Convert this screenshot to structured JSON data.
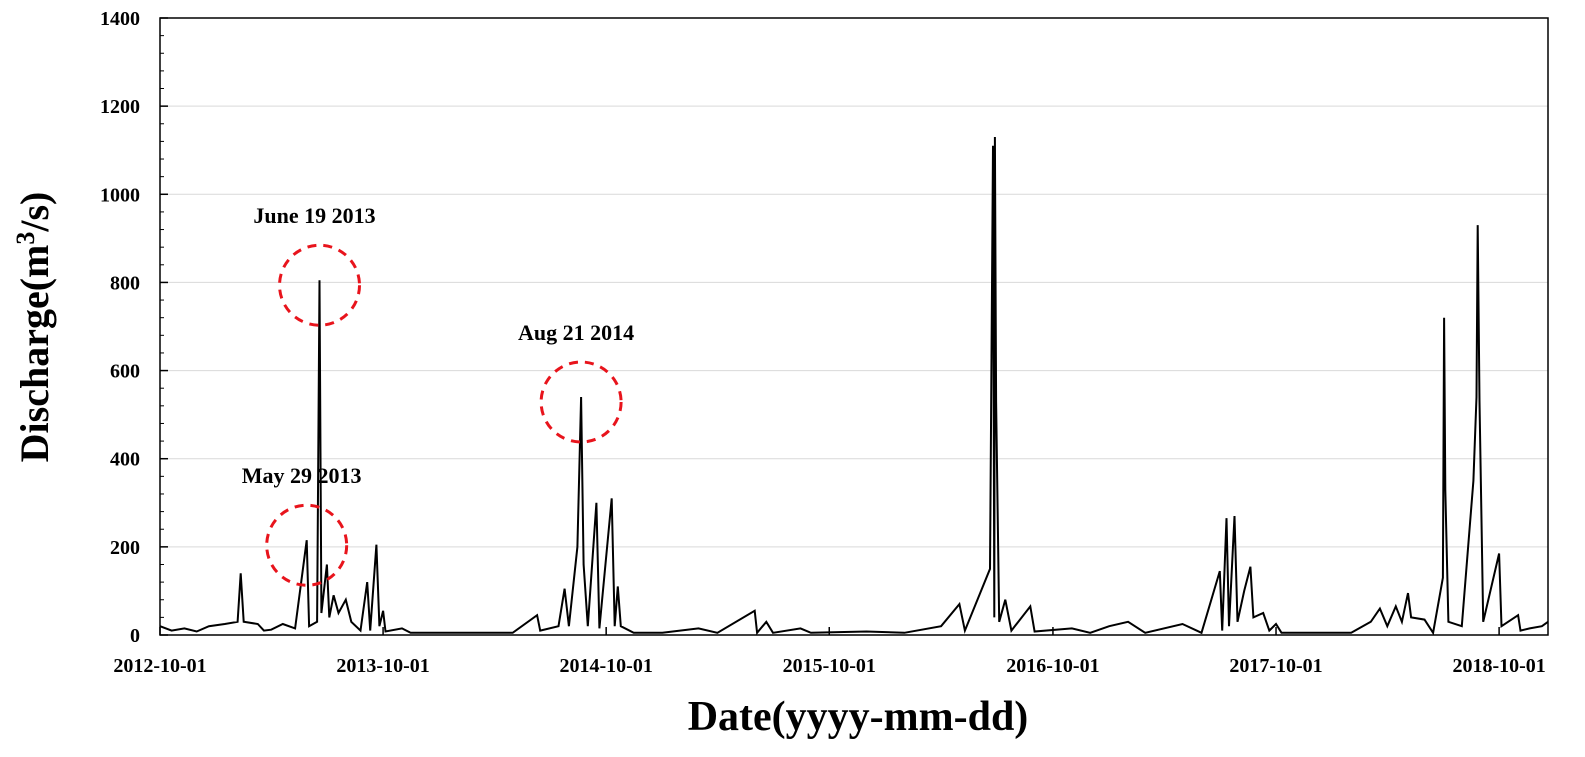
{
  "chart_data": {
    "type": "line",
    "xlabel": "Date(yyyy-mm-dd)",
    "ylabel_main": "Discharge(m",
    "ylabel_sup": "3",
    "ylabel_end": "/s)",
    "xlim": [
      "2012-10-01",
      "2018-12-20"
    ],
    "ylim": [
      0,
      1400
    ],
    "x_ticks": [
      "2012-10-01",
      "2013-10-01",
      "2014-10-01",
      "2015-10-01",
      "2016-10-01",
      "2017-10-01",
      "2018-10-01"
    ],
    "y_ticks": [
      0,
      200,
      400,
      600,
      800,
      1000,
      1200,
      1400
    ],
    "grid": "horizontal",
    "line_color": "#000000",
    "circle_color": "#e8141c",
    "annotations": [
      {
        "label": "June 19 2013",
        "date": "2013-06-19",
        "value": 805
      },
      {
        "label": "May 29 2013",
        "date": "2013-05-29",
        "value": 215
      },
      {
        "label": "Aug 21 2014",
        "date": "2014-08-21",
        "value": 540
      }
    ],
    "series": [
      {
        "points": [
          [
            "2012-10-01",
            20
          ],
          [
            "2012-10-20",
            10
          ],
          [
            "2012-11-10",
            15
          ],
          [
            "2012-11-30",
            8
          ],
          [
            "2012-12-20",
            20
          ],
          [
            "2013-01-15",
            25
          ],
          [
            "2013-02-05",
            30
          ],
          [
            "2013-02-10",
            140
          ],
          [
            "2013-02-15",
            30
          ],
          [
            "2013-03-10",
            25
          ],
          [
            "2013-03-20",
            10
          ],
          [
            "2013-04-01",
            12
          ],
          [
            "2013-04-20",
            25
          ],
          [
            "2013-05-10",
            15
          ],
          [
            "2013-05-29",
            215
          ],
          [
            "2013-06-02",
            20
          ],
          [
            "2013-06-15",
            30
          ],
          [
            "2013-06-19",
            805
          ],
          [
            "2013-06-22",
            50
          ],
          [
            "2013-07-01",
            160
          ],
          [
            "2013-07-05",
            40
          ],
          [
            "2013-07-12",
            90
          ],
          [
            "2013-07-20",
            50
          ],
          [
            "2013-08-01",
            80
          ],
          [
            "2013-08-10",
            30
          ],
          [
            "2013-08-25",
            10
          ],
          [
            "2013-09-05",
            120
          ],
          [
            "2013-09-10",
            10
          ],
          [
            "2013-09-20",
            205
          ],
          [
            "2013-09-25",
            20
          ],
          [
            "2013-10-01",
            55
          ],
          [
            "2013-10-05",
            8
          ],
          [
            "2013-11-01",
            15
          ],
          [
            "2013-11-15",
            5
          ],
          [
            "2014-01-01",
            5
          ],
          [
            "2014-03-01",
            5
          ],
          [
            "2014-05-01",
            5
          ],
          [
            "2014-06-10",
            45
          ],
          [
            "2014-06-15",
            10
          ],
          [
            "2014-07-15",
            20
          ],
          [
            "2014-07-25",
            105
          ],
          [
            "2014-08-01",
            20
          ],
          [
            "2014-08-15",
            200
          ],
          [
            "2014-08-21",
            540
          ],
          [
            "2014-08-25",
            160
          ],
          [
            "2014-09-01",
            20
          ],
          [
            "2014-09-15",
            300
          ],
          [
            "2014-09-20",
            15
          ],
          [
            "2014-10-10",
            310
          ],
          [
            "2014-10-15",
            20
          ],
          [
            "2014-10-20",
            110
          ],
          [
            "2014-10-25",
            20
          ],
          [
            "2014-11-15",
            5
          ],
          [
            "2015-01-01",
            5
          ],
          [
            "2015-03-01",
            15
          ],
          [
            "2015-04-01",
            5
          ],
          [
            "2015-06-01",
            55
          ],
          [
            "2015-06-05",
            5
          ],
          [
            "2015-06-20",
            30
          ],
          [
            "2015-07-01",
            5
          ],
          [
            "2015-08-15",
            15
          ],
          [
            "2015-09-01",
            5
          ],
          [
            "2015-12-01",
            8
          ],
          [
            "2016-02-01",
            5
          ],
          [
            "2016-04-01",
            20
          ],
          [
            "2016-05-01",
            70
          ],
          [
            "2016-05-10",
            10
          ],
          [
            "2016-06-20",
            150
          ],
          [
            "2016-06-25",
            1110
          ],
          [
            "2016-06-27",
            40
          ],
          [
            "2016-06-28",
            1130
          ],
          [
            "2016-06-30",
            530
          ],
          [
            "2016-07-05",
            30
          ],
          [
            "2016-07-15",
            80
          ],
          [
            "2016-07-25",
            10
          ],
          [
            "2016-08-25",
            65
          ],
          [
            "2016-09-01",
            8
          ],
          [
            "2016-11-01",
            15
          ],
          [
            "2016-12-01",
            5
          ],
          [
            "2017-01-01",
            20
          ],
          [
            "2017-02-01",
            30
          ],
          [
            "2017-03-01",
            5
          ],
          [
            "2017-05-01",
            25
          ],
          [
            "2017-06-01",
            5
          ],
          [
            "2017-07-01",
            145
          ],
          [
            "2017-07-05",
            10
          ],
          [
            "2017-07-12",
            265
          ],
          [
            "2017-07-16",
            20
          ],
          [
            "2017-07-25",
            270
          ],
          [
            "2017-07-30",
            30
          ],
          [
            "2017-08-10",
            100
          ],
          [
            "2017-08-20",
            155
          ],
          [
            "2017-08-25",
            40
          ],
          [
            "2017-09-10",
            50
          ],
          [
            "2017-09-20",
            10
          ],
          [
            "2017-10-01",
            25
          ],
          [
            "2017-10-10",
            5
          ],
          [
            "2017-12-01",
            5
          ],
          [
            "2018-02-01",
            5
          ],
          [
            "2018-03-05",
            30
          ],
          [
            "2018-03-20",
            60
          ],
          [
            "2018-04-01",
            20
          ],
          [
            "2018-04-15",
            65
          ],
          [
            "2018-04-25",
            30
          ],
          [
            "2018-05-05",
            95
          ],
          [
            "2018-05-10",
            40
          ],
          [
            "2018-06-01",
            35
          ],
          [
            "2018-06-15",
            5
          ],
          [
            "2018-07-01",
            130
          ],
          [
            "2018-07-03",
            720
          ],
          [
            "2018-07-05",
            330
          ],
          [
            "2018-07-10",
            30
          ],
          [
            "2018-08-01",
            20
          ],
          [
            "2018-08-20",
            350
          ],
          [
            "2018-08-25",
            540
          ],
          [
            "2018-08-27",
            930
          ],
          [
            "2018-08-30",
            530
          ],
          [
            "2018-09-05",
            30
          ],
          [
            "2018-10-01",
            185
          ],
          [
            "2018-10-05",
            20
          ],
          [
            "2018-11-01",
            45
          ],
          [
            "2018-11-05",
            10
          ],
          [
            "2018-11-20",
            15
          ],
          [
            "2018-12-10",
            20
          ],
          [
            "2018-12-20",
            30
          ]
        ]
      }
    ]
  }
}
